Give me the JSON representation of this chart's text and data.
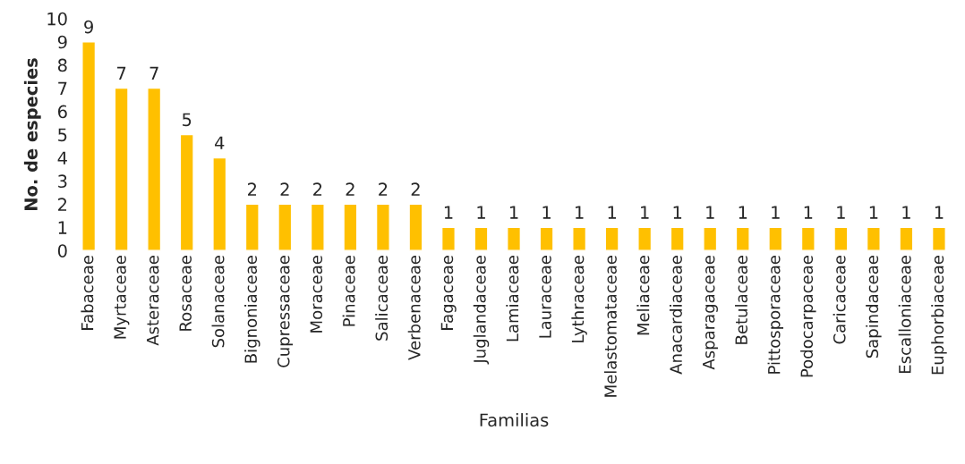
{
  "chart_data": {
    "type": "bar",
    "xlabel": "Familias",
    "ylabel": "No. de especies",
    "categories": [
      "Fabaceae",
      "Myrtaceae",
      "Asteraceae",
      "Rosaceae",
      "Solanaceae",
      "Bignoniaceae",
      "Cupressaceae",
      "Moraceae",
      "Pinaceae",
      "Salicaceae",
      "Verbenaceae",
      "Fagaceae",
      "Juglandaceae",
      "Lamiaceae",
      "Lauraceae",
      "Lythraceae",
      "Melastomataceae",
      "Meliaceae",
      "Anacardiaceae",
      "Asparagaceae",
      "Betulaceae",
      "Pittosporaceae",
      "Podocarpaceae",
      "Caricaceae",
      "Sapindaceae",
      "Escalloniaceae",
      "Euphorbiaceae"
    ],
    "values": [
      9,
      7,
      7,
      5,
      4,
      2,
      2,
      2,
      2,
      2,
      2,
      1,
      1,
      1,
      1,
      1,
      1,
      1,
      1,
      1,
      1,
      1,
      1,
      1,
      1,
      1,
      1
    ],
    "color": "#ffc000",
    "ylim": [
      0,
      10
    ],
    "yticks": [
      0,
      1,
      2,
      3,
      4,
      5,
      6,
      7,
      8,
      9,
      10
    ],
    "grid": false,
    "data_labels": true
  }
}
